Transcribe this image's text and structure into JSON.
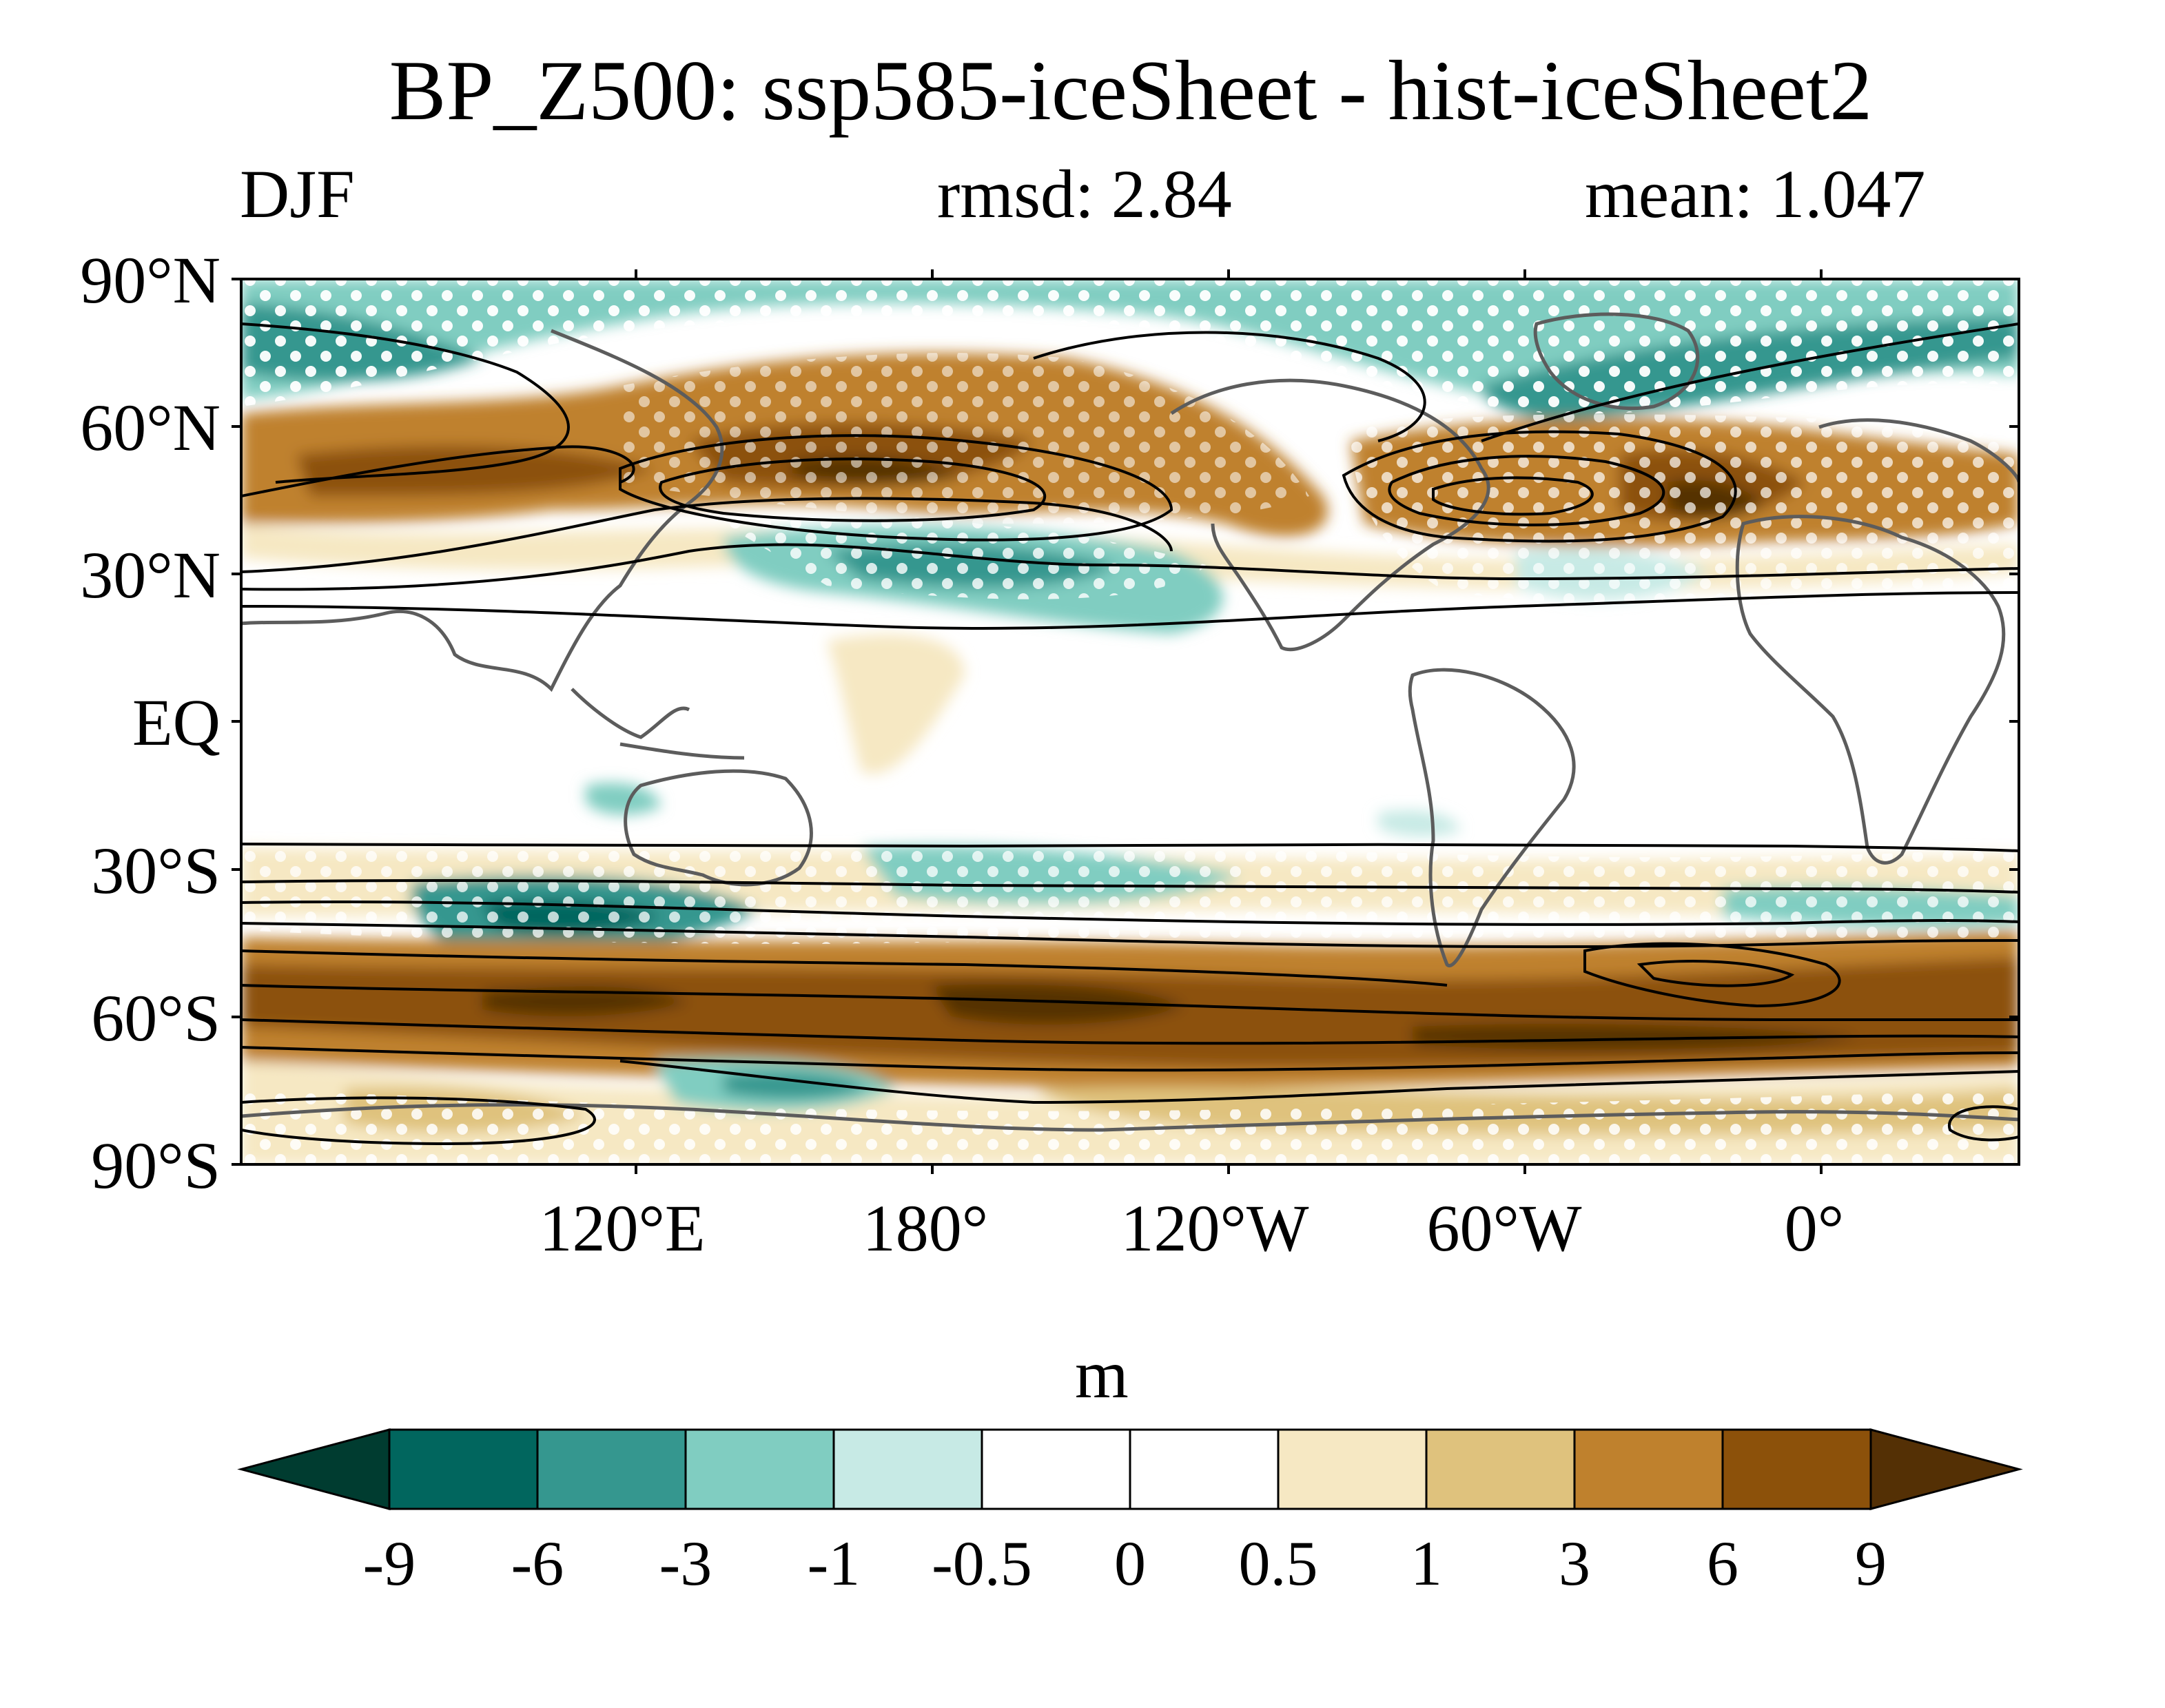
{
  "header": {
    "title": "BP_Z500: ssp585-iceSheet - hist-iceSheet2",
    "season": "DJF",
    "rmsd": "rmsd: 2.84",
    "mean": "mean: 1.047"
  },
  "map": {
    "lat_labels": [
      "90°N",
      "60°N",
      "30°N",
      "EQ",
      "30°S",
      "60°S",
      "90°S"
    ],
    "lon_labels": [
      "120°E",
      "180°",
      "120°W",
      "60°W",
      "0°"
    ],
    "projection": "cylindrical equidistant",
    "lon_range": [
      40,
      400
    ],
    "lat_range": [
      -90,
      90
    ]
  },
  "colorbar": {
    "unit": "m",
    "levels": [
      "-9",
      "-6",
      "-3",
      "-1",
      "-0.5",
      "0",
      "0.5",
      "1",
      "3",
      "6",
      "9"
    ],
    "colors": [
      "#003c30",
      "#01665e",
      "#35978f",
      "#80cdc1",
      "#c7eae5",
      "#ffffff",
      "#ffffff",
      "#f6e8c3",
      "#dfc27d",
      "#bf812d",
      "#8c510a",
      "#543005"
    ]
  }
}
